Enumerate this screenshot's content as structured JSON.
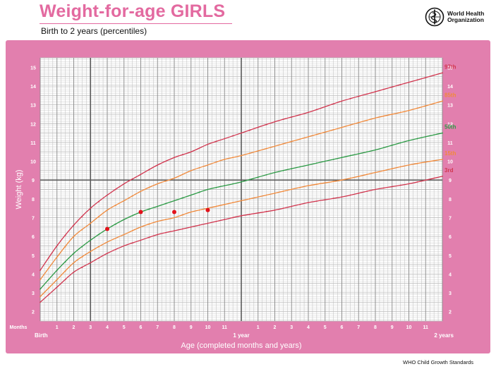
{
  "header": {
    "title": "Weight-for-age GIRLS",
    "subtitle": "Birth to 2 years (percentiles)",
    "org_line1": "World Health",
    "org_line2": "Organization",
    "logo_icon": "who-emblem-icon"
  },
  "footer": {
    "text": "WHO Child Growth Standards"
  },
  "colors": {
    "frame": "#e27fae",
    "plot_bg": "#ffffff",
    "grid": "#bdbdbd",
    "grid_major": "#5a5a5a",
    "p97": "#d1364f",
    "p85": "#f08a3c",
    "p50": "#2d9a46",
    "p15": "#f08a3c",
    "p3": "#d1364f",
    "points": "#e3121b"
  },
  "chart_data": {
    "type": "line",
    "title": "Weight-for-age GIRLS",
    "subtitle": "Birth to 2 years (percentiles)",
    "xlabel": "Age (completed months and years)",
    "ylabel": "Weight (kg)",
    "xlim": [
      0,
      24
    ],
    "ylim": [
      1.5,
      15.5
    ],
    "x_label_row_title": "Months",
    "x_ticks": [
      {
        "x": 0,
        "label": "Birth"
      },
      {
        "x": 1,
        "label": "1"
      },
      {
        "x": 2,
        "label": "2"
      },
      {
        "x": 3,
        "label": "3"
      },
      {
        "x": 4,
        "label": "4"
      },
      {
        "x": 5,
        "label": "5"
      },
      {
        "x": 6,
        "label": "6"
      },
      {
        "x": 7,
        "label": "7"
      },
      {
        "x": 8,
        "label": "8"
      },
      {
        "x": 9,
        "label": "9"
      },
      {
        "x": 10,
        "label": "10"
      },
      {
        "x": 11,
        "label": "11"
      },
      {
        "x": 12,
        "label": "1 year"
      },
      {
        "x": 13,
        "label": "1"
      },
      {
        "x": 14,
        "label": "2"
      },
      {
        "x": 15,
        "label": "3"
      },
      {
        "x": 16,
        "label": "4"
      },
      {
        "x": 17,
        "label": "5"
      },
      {
        "x": 18,
        "label": "6"
      },
      {
        "x": 19,
        "label": "7"
      },
      {
        "x": 20,
        "label": "8"
      },
      {
        "x": 21,
        "label": "9"
      },
      {
        "x": 22,
        "label": "10"
      },
      {
        "x": 23,
        "label": "11"
      },
      {
        "x": 24,
        "label": "2 years"
      }
    ],
    "y_ticks": [
      2,
      3,
      4,
      5,
      6,
      7,
      8,
      9,
      10,
      11,
      12,
      13,
      14,
      15
    ],
    "grid": true,
    "series": [
      {
        "name": "97th",
        "color_key": "p97",
        "x": [
          0,
          1,
          2,
          3,
          4,
          5,
          6,
          7,
          8,
          9,
          10,
          11,
          12,
          14,
          16,
          18,
          20,
          22,
          24
        ],
        "values": [
          4.2,
          5.5,
          6.6,
          7.5,
          8.2,
          8.8,
          9.3,
          9.8,
          10.2,
          10.5,
          10.9,
          11.2,
          11.5,
          12.1,
          12.6,
          13.2,
          13.7,
          14.2,
          14.7
        ]
      },
      {
        "name": "85th",
        "color_key": "p85",
        "x": [
          0,
          1,
          2,
          3,
          4,
          5,
          6,
          7,
          8,
          9,
          10,
          11,
          12,
          14,
          16,
          18,
          20,
          22,
          24
        ],
        "values": [
          3.7,
          4.9,
          6.0,
          6.7,
          7.4,
          7.9,
          8.4,
          8.8,
          9.1,
          9.5,
          9.8,
          10.1,
          10.3,
          10.8,
          11.3,
          11.8,
          12.3,
          12.7,
          13.2
        ]
      },
      {
        "name": "50th",
        "color_key": "p50",
        "x": [
          0,
          1,
          2,
          3,
          4,
          5,
          6,
          7,
          8,
          9,
          10,
          11,
          12,
          14,
          16,
          18,
          20,
          22,
          24
        ],
        "values": [
          3.2,
          4.2,
          5.1,
          5.8,
          6.4,
          6.9,
          7.3,
          7.6,
          7.9,
          8.2,
          8.5,
          8.7,
          8.9,
          9.4,
          9.8,
          10.2,
          10.6,
          11.1,
          11.5
        ]
      },
      {
        "name": "15th",
        "color_key": "p15",
        "x": [
          0,
          1,
          2,
          3,
          4,
          5,
          6,
          7,
          8,
          9,
          10,
          11,
          12,
          14,
          16,
          18,
          20,
          22,
          24
        ],
        "values": [
          2.8,
          3.7,
          4.6,
          5.2,
          5.7,
          6.1,
          6.5,
          6.8,
          7.0,
          7.3,
          7.5,
          7.7,
          7.9,
          8.3,
          8.7,
          9.0,
          9.4,
          9.8,
          10.1
        ]
      },
      {
        "name": "3rd",
        "color_key": "p3",
        "x": [
          0,
          1,
          2,
          3,
          4,
          5,
          6,
          7,
          8,
          9,
          10,
          11,
          12,
          14,
          16,
          18,
          20,
          22,
          24
        ],
        "values": [
          2.5,
          3.3,
          4.1,
          4.6,
          5.1,
          5.5,
          5.8,
          6.1,
          6.3,
          6.5,
          6.7,
          6.9,
          7.1,
          7.4,
          7.8,
          8.1,
          8.5,
          8.8,
          9.2
        ]
      }
    ],
    "points": [
      {
        "x": 4,
        "y": 6.4
      },
      {
        "x": 6,
        "y": 7.3
      },
      {
        "x": 8,
        "y": 7.3
      },
      {
        "x": 10,
        "y": 7.4
      }
    ]
  }
}
